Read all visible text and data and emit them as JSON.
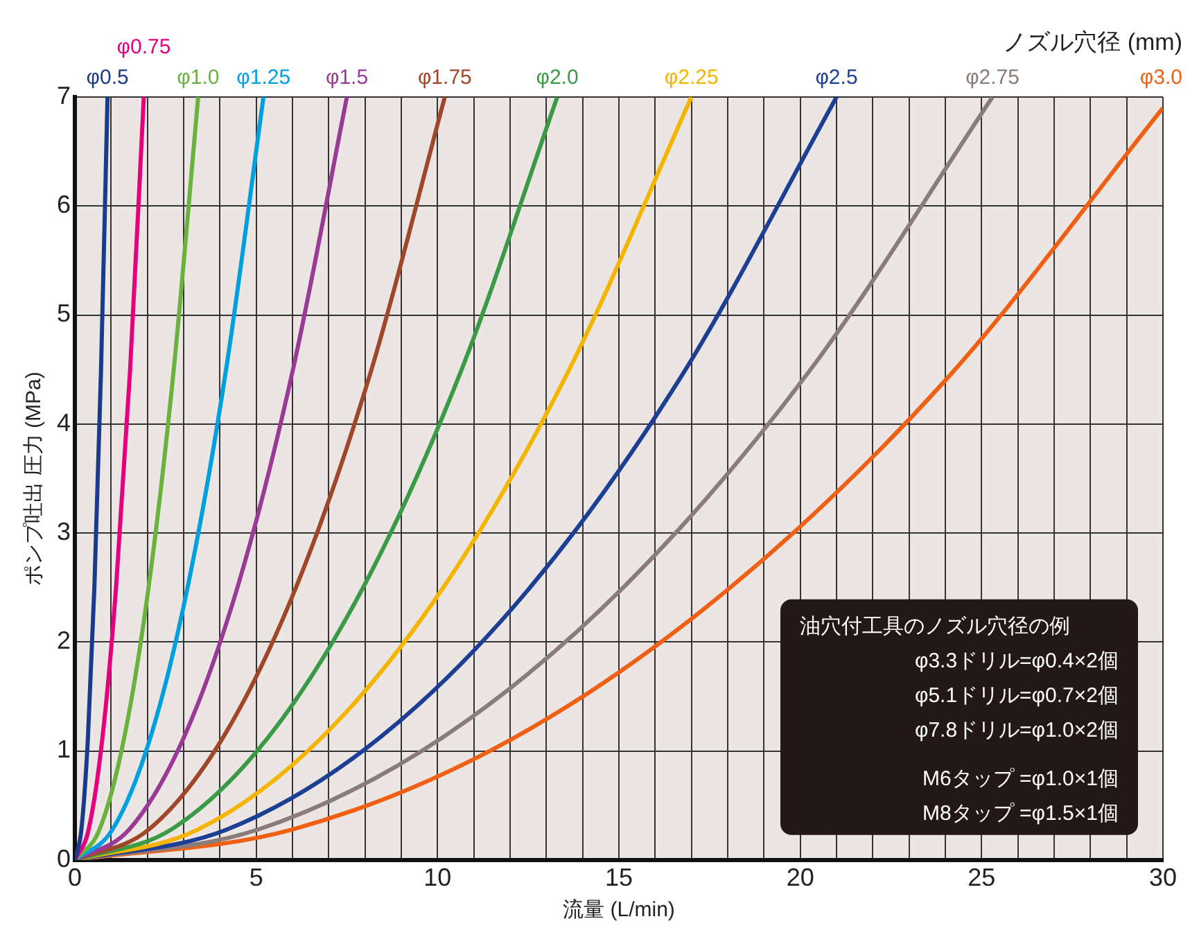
{
  "chart_data": {
    "type": "line",
    "xlabel": "流量 (L/min)",
    "ylabel": "ポンプ吐出 圧力 (MPa)",
    "legend_title": "ノズル穴径 (mm)",
    "xlim": [
      0,
      30
    ],
    "ylim": [
      0,
      7
    ],
    "xticks": [
      0,
      {
        "value": 1,
        "label": null
      },
      {
        "value": 2,
        "label": null
      },
      {
        "value": 3,
        "label": null
      },
      {
        "value": 4,
        "label": null
      },
      5,
      {
        "value": 6,
        "label": null
      },
      {
        "value": 7,
        "label": null
      },
      {
        "value": 8,
        "label": null
      },
      {
        "value": 9,
        "label": null
      },
      10,
      {
        "value": 11,
        "label": null
      },
      {
        "value": 12,
        "label": null
      },
      {
        "value": 13,
        "label": null
      },
      {
        "value": 14,
        "label": null
      },
      15,
      {
        "value": 16,
        "label": null
      },
      {
        "value": 17,
        "label": null
      },
      {
        "value": 18,
        "label": null
      },
      {
        "value": 19,
        "label": null
      },
      20,
      {
        "value": 21,
        "label": null
      },
      {
        "value": 22,
        "label": null
      },
      {
        "value": 23,
        "label": null
      },
      {
        "value": 24,
        "label": null
      },
      25,
      {
        "value": 26,
        "label": null
      },
      {
        "value": 27,
        "label": null
      },
      {
        "value": 28,
        "label": null
      },
      {
        "value": 29,
        "label": null
      },
      30
    ],
    "yticks": [
      0,
      1,
      2,
      3,
      4,
      5,
      6,
      7
    ],
    "grid": true,
    "legend": "top",
    "marker": "none",
    "line_style": "solid",
    "series": [
      {
        "name": "φ0.5",
        "color": "#1a3a8c",
        "x": [
          0,
          0.18,
          0.36,
          0.54,
          0.72,
          0.9
        ],
        "values": [
          0,
          0.28,
          1.12,
          2.52,
          4.48,
          7
        ]
      },
      {
        "name": "φ0.75",
        "color": "#e6007e",
        "x": [
          0,
          0.38,
          0.76,
          1.14,
          1.52,
          1.9
        ],
        "values": [
          0,
          0.28,
          1.12,
          2.52,
          4.48,
          7
        ]
      },
      {
        "name": "φ1.0",
        "color": "#6ab23e",
        "x": [
          0,
          0.68,
          1.36,
          2.04,
          2.72,
          3.4
        ],
        "values": [
          0,
          0.28,
          1.12,
          2.52,
          4.48,
          7
        ]
      },
      {
        "name": "φ1.25",
        "color": "#00a0e0",
        "x": [
          0,
          1.04,
          2.08,
          3.12,
          4.16,
          5.2
        ],
        "values": [
          0,
          0.28,
          1.12,
          2.52,
          4.48,
          7
        ]
      },
      {
        "name": "φ1.5",
        "color": "#9b3a96",
        "x": [
          0,
          1.5,
          3,
          4.5,
          6,
          7.5
        ],
        "values": [
          0,
          0.28,
          1.12,
          2.52,
          4.48,
          7
        ]
      },
      {
        "name": "φ1.75",
        "color": "#a0472a",
        "x": [
          0,
          2.04,
          4.08,
          6.12,
          8.16,
          10.2
        ],
        "values": [
          0,
          0.28,
          1.12,
          2.52,
          4.48,
          7
        ]
      },
      {
        "name": "φ2.0",
        "color": "#3b9a45",
        "x": [
          0,
          2.66,
          5.32,
          7.98,
          10.64,
          13.3
        ],
        "values": [
          0,
          0.28,
          1.12,
          2.52,
          4.48,
          7
        ]
      },
      {
        "name": "φ2.25",
        "color": "#f5b400",
        "x": [
          0,
          3.4,
          6.8,
          10.2,
          13.6,
          17
        ],
        "values": [
          0,
          0.28,
          1.12,
          2.52,
          4.48,
          7
        ]
      },
      {
        "name": "φ2.5",
        "color": "#1c3f94",
        "x": [
          0,
          4.2,
          8.4,
          12.6,
          16.8,
          21
        ],
        "values": [
          0,
          0.28,
          1.12,
          2.52,
          4.48,
          7
        ]
      },
      {
        "name": "φ2.75",
        "color": "#8c7b7b",
        "x": [
          0,
          5.06,
          10.12,
          15.18,
          20.24,
          25.3
        ],
        "values": [
          0,
          0.28,
          1.12,
          2.52,
          4.48,
          7
        ]
      },
      {
        "name": "φ3.0",
        "color": "#f06014",
        "x": [
          0,
          6,
          12,
          18,
          24,
          30
        ],
        "values": [
          0,
          0.28,
          1.1,
          2.48,
          4.4,
          6.9
        ]
      }
    ],
    "annotations": [
      "油穴付工具のノズル穴径の例",
      "φ3.3ドリル=φ0.4×2個",
      "φ5.1ドリル=φ0.7×2個",
      "φ7.8ドリル=φ1.0×2個",
      "M6タップ =φ1.0×1個",
      "M8タップ =φ1.5×1個"
    ]
  }
}
